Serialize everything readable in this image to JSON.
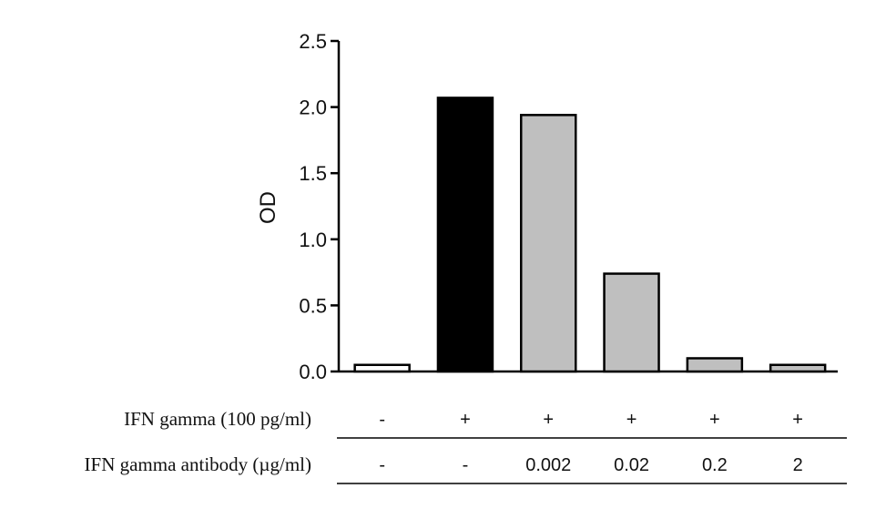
{
  "chart_data": {
    "type": "bar",
    "title": "",
    "ylabel": "OD",
    "xlabel": "",
    "ylim": [
      0,
      2.5
    ],
    "yticks": [
      "0.0",
      "0.5",
      "1.0",
      "1.5",
      "2.0",
      "2.5"
    ],
    "ytick_values": [
      0,
      0.5,
      1.0,
      1.5,
      2.0,
      2.5
    ],
    "values": [
      0.05,
      2.07,
      1.94,
      0.74,
      0.1,
      0.05
    ],
    "bar_colors": [
      "#ffffff",
      "#000000",
      "#bfbfbf",
      "#bfbfbf",
      "#bfbfbf",
      "#bfbfbf"
    ],
    "conditions": [
      {
        "label": "IFN gamma (100 pg/ml)",
        "values": [
          "-",
          "+",
          "+",
          "+",
          "+",
          "+"
        ]
      },
      {
        "label": "IFN gamma antibody (µg/ml)",
        "values": [
          "-",
          "-",
          "0.002",
          "0.02",
          "0.2",
          "2"
        ]
      }
    ]
  }
}
